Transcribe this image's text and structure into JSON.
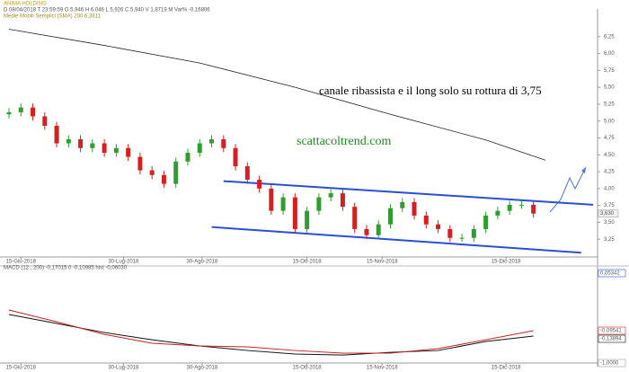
{
  "chart_data": {
    "type": "candlestick",
    "title": "ANIMA HOLDING",
    "info": "D 08/04/2018  T 23:59:59  O 5,946  H 6,046  L 5,926  C 5,940  V 1,8719 M  Var% -0,16806",
    "sma_label": "Medie Mobili Semplici (SMA)   200   6,3811",
    "annotations": [
      "canale ribassista e il long solo su rottura di 3,75",
      "scattacoltrend.com"
    ],
    "last_price_label": "3,630",
    "xlim": [
      0,
      49
    ],
    "xticks": [
      {
        "value": 1,
        "label": "15-Giu-2018"
      },
      {
        "value": 9.6,
        "label": "30-Lug-2018"
      },
      {
        "value": 16.2,
        "label": "30-Ago-2018"
      },
      {
        "value": 25,
        "label": "15-Ott-2018"
      },
      {
        "value": 31.3,
        "label": "15-Nov-2018"
      },
      {
        "value": 41.7,
        "label": "15-Dic-2018"
      }
    ],
    "ylim": [
      3.0,
      6.5
    ],
    "yticks": [
      {
        "value": 3.25,
        "label": "3,25"
      },
      {
        "value": 3.5,
        "label": "3,50"
      },
      {
        "value": 3.75,
        "label": "3,75"
      },
      {
        "value": 4.0,
        "label": "4,00"
      },
      {
        "value": 4.25,
        "label": "4,25"
      },
      {
        "value": 4.5,
        "label": "4,50"
      },
      {
        "value": 4.75,
        "label": "4,75"
      },
      {
        "value": 5.0,
        "label": "5,00"
      },
      {
        "value": 5.25,
        "label": "5,25"
      },
      {
        "value": 5.5,
        "label": "5,50"
      },
      {
        "value": 5.75,
        "label": "5,75"
      },
      {
        "value": 6.0,
        "label": "6,00"
      },
      {
        "value": 6.25,
        "label": "6,25"
      }
    ],
    "up_color": "#2e9e2e",
    "down_color": "#d42020",
    "open": [
      5.1,
      5.13,
      5.2,
      5.07,
      4.93,
      4.67,
      4.73,
      4.6,
      4.67,
      4.53,
      4.6,
      4.47,
      4.27,
      4.2,
      4.07,
      4.4,
      4.53,
      4.67,
      4.73,
      4.6,
      4.33,
      4.13,
      4.0,
      3.67,
      3.87,
      3.4,
      3.67,
      3.87,
      3.93,
      3.73,
      3.4,
      3.31,
      3.47,
      3.71,
      3.8,
      3.6,
      3.47,
      3.4,
      3.27,
      3.27,
      3.4,
      3.6,
      3.67,
      3.76,
      3.76
    ],
    "high": [
      5.19,
      5.26,
      5.26,
      5.13,
      4.99,
      4.79,
      4.79,
      4.73,
      4.73,
      4.66,
      4.66,
      4.53,
      4.33,
      4.26,
      4.46,
      4.59,
      4.73,
      4.79,
      4.79,
      4.66,
      4.39,
      4.19,
      4.06,
      3.93,
      3.93,
      3.73,
      3.93,
      3.99,
      3.99,
      3.79,
      3.46,
      3.53,
      3.77,
      3.86,
      3.86,
      3.66,
      3.53,
      3.46,
      3.33,
      3.46,
      3.66,
      3.73,
      3.82,
      3.82,
      3.82
    ],
    "low": [
      5.04,
      5.07,
      5.01,
      4.87,
      4.61,
      4.61,
      4.54,
      4.54,
      4.47,
      4.47,
      4.41,
      4.21,
      4.14,
      4.01,
      4.01,
      4.34,
      4.47,
      4.61,
      4.54,
      4.27,
      4.07,
      3.94,
      3.61,
      3.61,
      3.34,
      3.34,
      3.61,
      3.81,
      3.67,
      3.34,
      3.25,
      3.25,
      3.41,
      3.65,
      3.54,
      3.41,
      3.34,
      3.21,
      3.21,
      3.21,
      3.34,
      3.54,
      3.61,
      3.7,
      3.57
    ],
    "close": [
      5.13,
      5.2,
      5.07,
      4.93,
      4.67,
      4.73,
      4.6,
      4.67,
      4.53,
      4.6,
      4.47,
      4.27,
      4.2,
      4.07,
      4.4,
      4.53,
      4.67,
      4.73,
      4.6,
      4.33,
      4.13,
      4.0,
      3.67,
      3.87,
      3.4,
      3.67,
      3.87,
      3.93,
      3.73,
      3.4,
      3.31,
      3.47,
      3.71,
      3.8,
      3.6,
      3.47,
      3.4,
      3.27,
      3.27,
      3.4,
      3.6,
      3.67,
      3.76,
      3.76,
      3.63
    ],
    "sma": {
      "color": "#222222",
      "x": [
        0,
        8,
        16,
        24,
        32,
        40,
        45
      ],
      "values": [
        6.36,
        6.12,
        5.86,
        5.5,
        5.1,
        4.72,
        4.42
      ]
    },
    "channel": {
      "color": "#2a4fd6",
      "lines": [
        {
          "x": [
            18,
            49
          ],
          "values": [
            4.11,
            3.76
          ]
        },
        {
          "x": [
            17,
            48
          ],
          "values": [
            3.43,
            3.05
          ]
        }
      ]
    },
    "macd": {
      "label": "MACD   (12 , 200)   -0,17015   0   -0,10985   hist   -0,06030",
      "ylim": [
        -0.33,
        0.39
      ],
      "x": [
        0,
        4,
        8,
        12,
        16,
        20,
        24,
        28,
        32,
        36,
        40,
        44
      ],
      "series": [
        {
          "color": "#111111",
          "values": [
            0.037,
            -0.036,
            -0.11,
            -0.169,
            -0.22,
            -0.257,
            -0.286,
            -0.294,
            -0.272,
            -0.257,
            -0.183,
            -0.139
          ]
        },
        {
          "color": "#cc2020",
          "values": [
            0.074,
            -0.022,
            -0.125,
            -0.198,
            -0.22,
            -0.227,
            -0.257,
            -0.279,
            -0.279,
            -0.242,
            -0.169,
            -0.095
          ]
        }
      ],
      "axis_labels": [
        "0,05342",
        "-0,09541",
        "-0,13894",
        "-1,0000"
      ]
    }
  }
}
